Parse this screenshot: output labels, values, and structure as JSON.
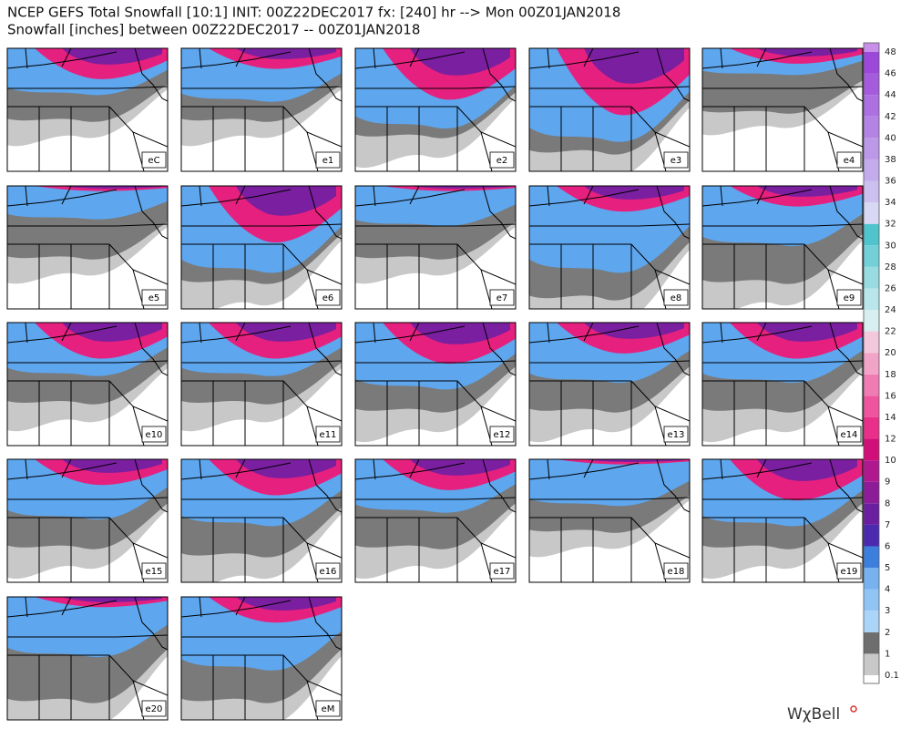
{
  "header": {
    "title_line1": "NCEP GEFS Total Snowfall [10:1] INIT: 00Z22DEC2017 fx: [240] hr --> Mon 00Z01JAN2018",
    "title_line2": "Snowfall [inches] between 00Z22DEC2017 -- 00Z01JAN2018"
  },
  "panels": [
    {
      "label": "eC"
    },
    {
      "label": "e1"
    },
    {
      "label": "e2"
    },
    {
      "label": "e3"
    },
    {
      "label": "e4"
    },
    {
      "label": "e5"
    },
    {
      "label": "e6"
    },
    {
      "label": "e7"
    },
    {
      "label": "e8"
    },
    {
      "label": "e9"
    },
    {
      "label": "e10"
    },
    {
      "label": "e11"
    },
    {
      "label": "e12"
    },
    {
      "label": "e13"
    },
    {
      "label": "e14"
    },
    {
      "label": "e15"
    },
    {
      "label": "e16"
    },
    {
      "label": "e17"
    },
    {
      "label": "e18"
    },
    {
      "label": "e19"
    },
    {
      "label": "e20"
    },
    {
      "label": "eM"
    }
  ],
  "colorbar": {
    "labels": [
      0.1,
      1,
      2,
      3,
      4,
      5,
      6,
      7,
      8,
      9,
      10,
      12,
      14,
      16,
      18,
      20,
      22,
      24,
      26,
      28,
      30,
      32,
      34,
      36,
      38,
      40,
      42,
      44,
      46,
      48
    ],
    "colors": [
      "#ffffff",
      "#c8c8c8",
      "#6e6e6e",
      "#aad4f8",
      "#90c4f4",
      "#76b2ee",
      "#3d7fdc",
      "#4b2ab0",
      "#6a1fa0",
      "#8c1c98",
      "#b01890",
      "#d01078",
      "#e8308a",
      "#ee559e",
      "#f07cb4",
      "#f2a4c8",
      "#f4c8dc",
      "#d8eef0",
      "#b8e6ea",
      "#98dce2",
      "#74d0d8",
      "#50c4cc",
      "#d8d8f4",
      "#ccc0f0",
      "#c4acec",
      "#bc98e8",
      "#b484e4",
      "#ac70e0",
      "#a45cdc",
      "#9c48d8",
      "#c890e8"
    ]
  },
  "brand": "WχBell"
}
